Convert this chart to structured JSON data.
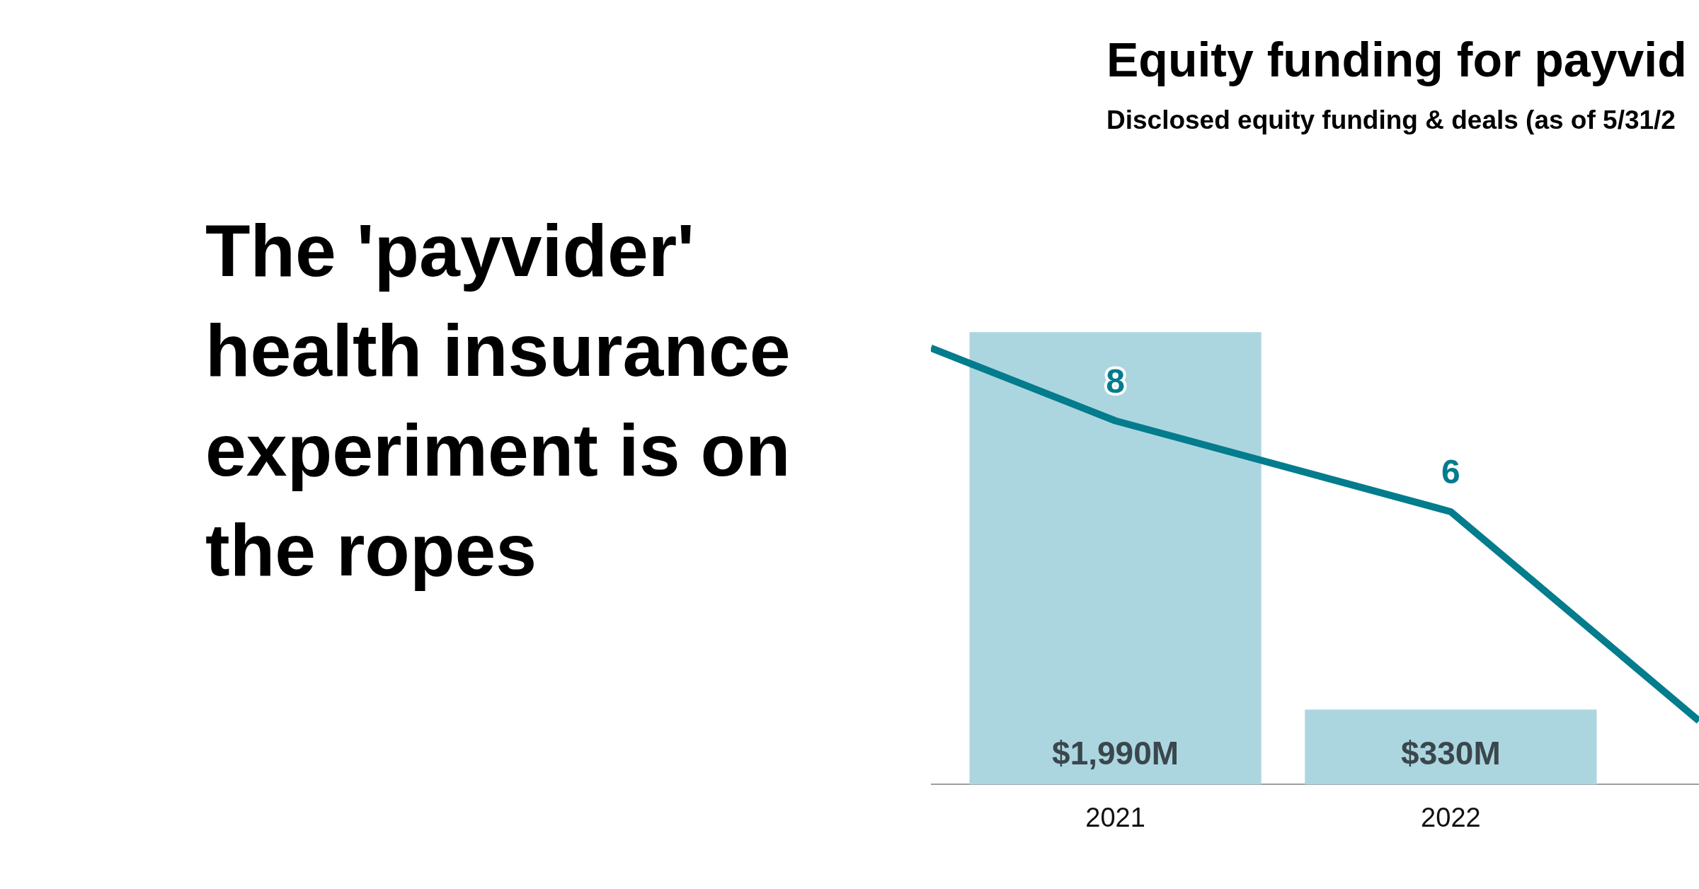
{
  "chart_data": {
    "type": "bar",
    "title": "Equity funding for payvid",
    "subtitle": "Disclosed equity funding & deals (as of 5/31/2",
    "annotations": [
      "The 'payvider' health insurance experiment is on the ropes"
    ],
    "x": [
      2021,
      2022
    ],
    "xlim": [
      2020.45,
      2022.74
    ],
    "xticks": [
      2021,
      2022
    ],
    "tick_labels": "x",
    "marker": "none",
    "series": [
      {
        "color": "#acd6df",
        "values": [
          1990,
          330
        ],
        "value_labels": [
          "$1,990M",
          "$330M"
        ]
      },
      {
        "type": "line",
        "axis": "y2",
        "color": "#037c8d",
        "x": [
          2020.45,
          2021,
          2022,
          2022.74
        ],
        "values": [
          9.6,
          8,
          6,
          1.4
        ],
        "value_labels": [
          null,
          "8",
          "6",
          null
        ]
      }
    ]
  }
}
